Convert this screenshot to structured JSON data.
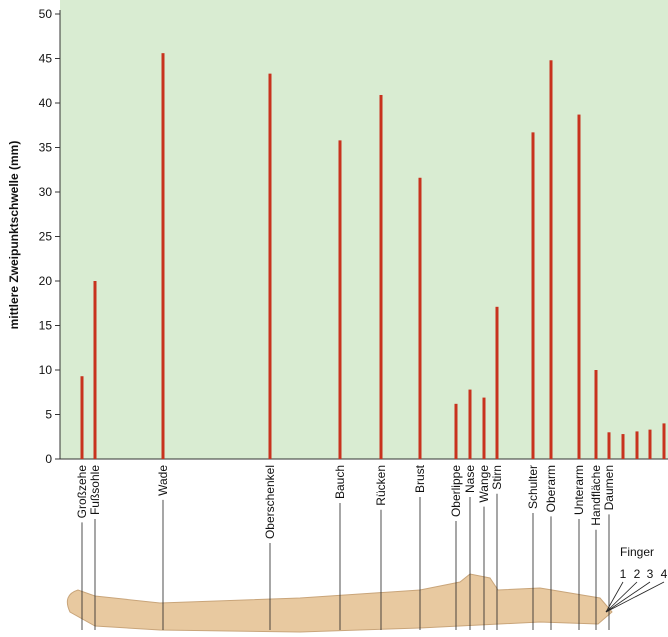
{
  "chart_data": {
    "type": "bar",
    "y_label": "mittlere Zweipunktschwelle (mm)",
    "categories": [
      "Großzehe",
      "Fußsohle",
      "Wade",
      "Oberschenkel",
      "Bauch",
      "Rücken",
      "Brust",
      "Oberlippe",
      "Nase",
      "Wange",
      "Stirn",
      "Schulter",
      "Oberarm",
      "Unterarm",
      "Handfläche",
      "Daumen",
      "1",
      "2",
      "3",
      "4"
    ],
    "group_label": "Finger",
    "values": [
      9.3,
      20,
      45.6,
      43.3,
      35.8,
      40.9,
      31.6,
      6.2,
      7.8,
      6.9,
      17.1,
      36.7,
      44.8,
      38.7,
      10,
      3,
      2.8,
      3.1,
      3.3,
      4
    ],
    "color": "#c8321e",
    "ylim": [
      0,
      50
    ],
    "yticks": [
      0,
      5,
      10,
      15,
      20,
      25,
      30,
      35,
      40,
      45,
      50
    ]
  }
}
